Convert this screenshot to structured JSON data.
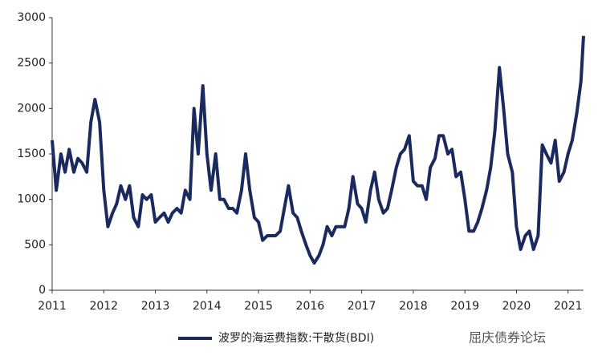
{
  "chart_data": {
    "type": "line",
    "legend": "bottom",
    "watermark": "屈庆债券论坛",
    "x": [
      2011.0,
      2011.08,
      2011.17,
      2011.25,
      2011.33,
      2011.42,
      2011.5,
      2011.58,
      2011.67,
      2011.75,
      2011.83,
      2011.92,
      2012.0,
      2012.08,
      2012.17,
      2012.25,
      2012.33,
      2012.42,
      2012.5,
      2012.58,
      2012.67,
      2012.75,
      2012.83,
      2012.92,
      2013.0,
      2013.08,
      2013.17,
      2013.25,
      2013.33,
      2013.42,
      2013.5,
      2013.58,
      2013.67,
      2013.75,
      2013.83,
      2013.92,
      2014.0,
      2014.08,
      2014.17,
      2014.25,
      2014.33,
      2014.42,
      2014.5,
      2014.58,
      2014.67,
      2014.75,
      2014.83,
      2014.92,
      2015.0,
      2015.08,
      2015.17,
      2015.25,
      2015.33,
      2015.42,
      2015.5,
      2015.58,
      2015.67,
      2015.75,
      2015.83,
      2015.92,
      2016.0,
      2016.08,
      2016.17,
      2016.25,
      2016.33,
      2016.42,
      2016.5,
      2016.58,
      2016.67,
      2016.75,
      2016.83,
      2016.92,
      2017.0,
      2017.08,
      2017.17,
      2017.25,
      2017.33,
      2017.42,
      2017.5,
      2017.58,
      2017.67,
      2017.75,
      2017.83,
      2017.92,
      2018.0,
      2018.08,
      2018.17,
      2018.25,
      2018.33,
      2018.42,
      2018.5,
      2018.58,
      2018.67,
      2018.75,
      2018.83,
      2018.92,
      2019.0,
      2019.08,
      2019.17,
      2019.25,
      2019.33,
      2019.42,
      2019.5,
      2019.58,
      2019.67,
      2019.75,
      2019.83,
      2019.92,
      2020.0,
      2020.08,
      2020.17,
      2020.25,
      2020.33,
      2020.42,
      2020.5,
      2020.58,
      2020.67,
      2020.75,
      2020.83,
      2020.92,
      2021.0,
      2021.08,
      2021.17,
      2021.25,
      2021.3
    ],
    "series": [
      {
        "name": "波罗的海运费指数:干散货(BDI)",
        "color": "#1b2a5e",
        "values": [
          1650,
          1100,
          1500,
          1300,
          1550,
          1300,
          1450,
          1400,
          1300,
          1850,
          2100,
          1850,
          1100,
          700,
          850,
          950,
          1150,
          1000,
          1150,
          800,
          700,
          1050,
          1000,
          1050,
          750,
          800,
          850,
          750,
          850,
          900,
          850,
          1100,
          1000,
          2000,
          1500,
          2250,
          1500,
          1100,
          1500,
          1000,
          1000,
          900,
          900,
          850,
          1100,
          1500,
          1100,
          800,
          750,
          550,
          600,
          600,
          600,
          650,
          900,
          1150,
          850,
          800,
          650,
          500,
          380,
          300,
          380,
          500,
          700,
          600,
          700,
          700,
          700,
          900,
          1250,
          950,
          900,
          750,
          1100,
          1300,
          1000,
          850,
          900,
          1100,
          1350,
          1500,
          1550,
          1700,
          1200,
          1150,
          1150,
          1000,
          1350,
          1450,
          1700,
          1700,
          1500,
          1550,
          1250,
          1300,
          1000,
          650,
          650,
          750,
          900,
          1100,
          1350,
          1750,
          2450,
          2000,
          1500,
          1300,
          700,
          450,
          600,
          650,
          450,
          600,
          1600,
          1500,
          1400,
          1650,
          1200,
          1300,
          1500,
          1650,
          1950,
          2300,
          2800
        ]
      }
    ],
    "xlim": [
      2011,
      2021.3
    ],
    "xticks": [
      2011,
      2012,
      2013,
      2014,
      2015,
      2016,
      2017,
      2018,
      2019,
      2020,
      2021
    ],
    "ylim": [
      0,
      3000
    ],
    "yticks": [
      0,
      500,
      1000,
      1500,
      2000,
      2500,
      3000
    ]
  }
}
